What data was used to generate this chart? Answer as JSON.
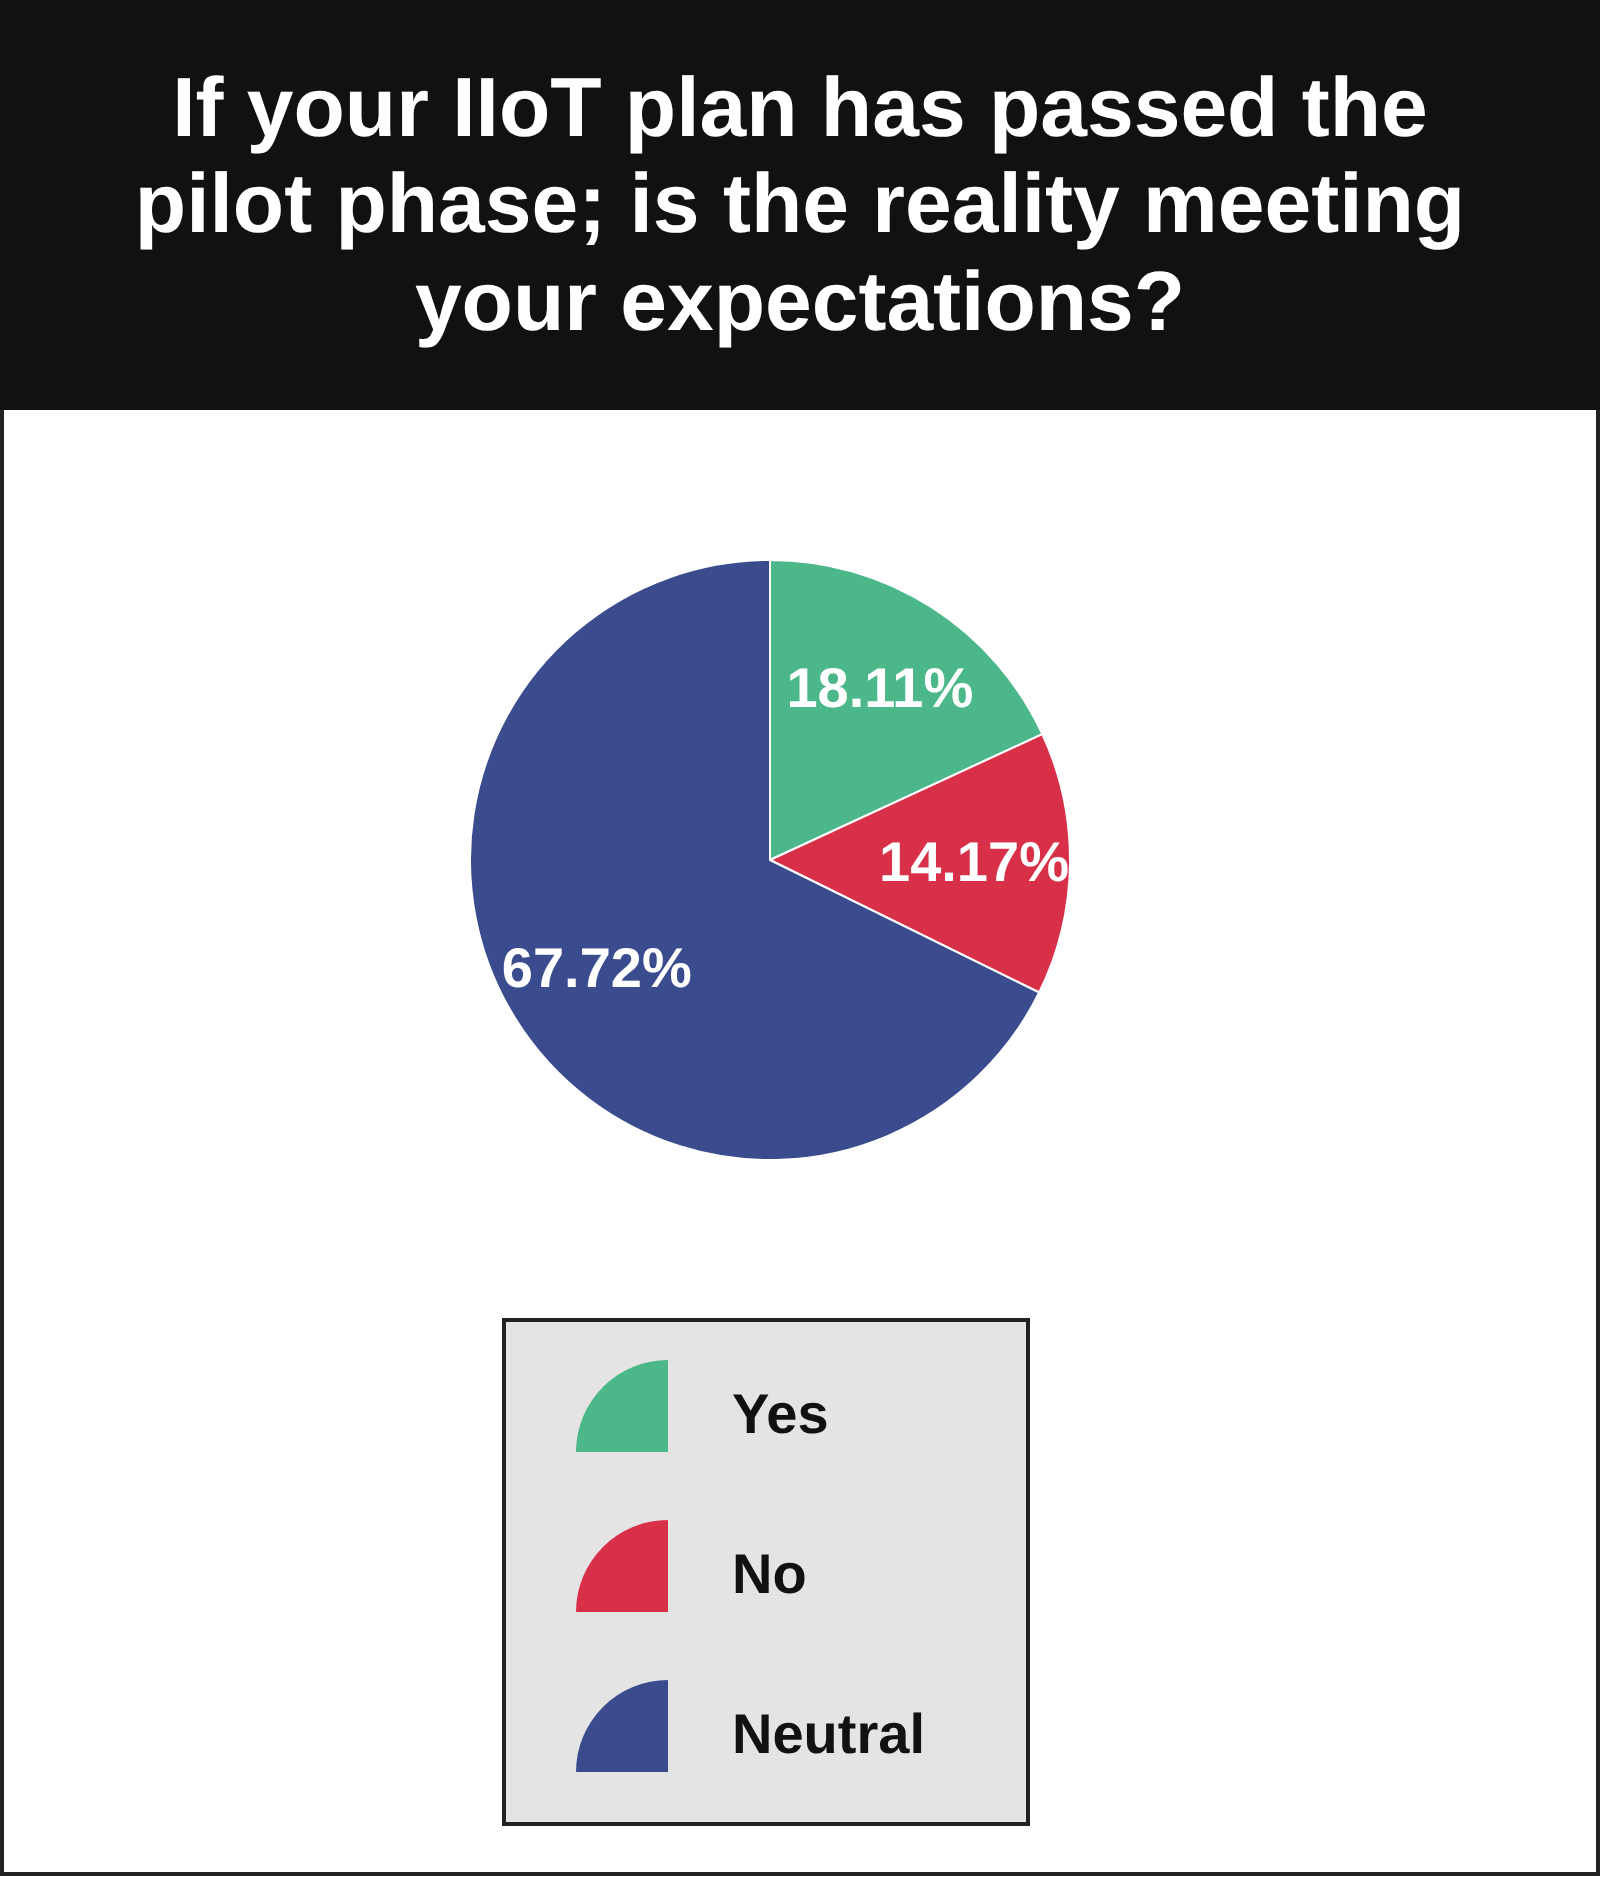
{
  "chart_data": {
    "type": "pie",
    "title": "If your IIoT plan has passed the pilot phase; is the reality meeting your expectations?",
    "categories": [
      "Yes",
      "No",
      "Neutral"
    ],
    "values": [
      18.11,
      14.17,
      67.72
    ],
    "colors": [
      "#4cb88a",
      "#d9304a",
      "#3a4b8e"
    ],
    "value_labels": [
      "18.11%",
      "14.17%",
      "67.72%"
    ],
    "legend": "bottom"
  }
}
